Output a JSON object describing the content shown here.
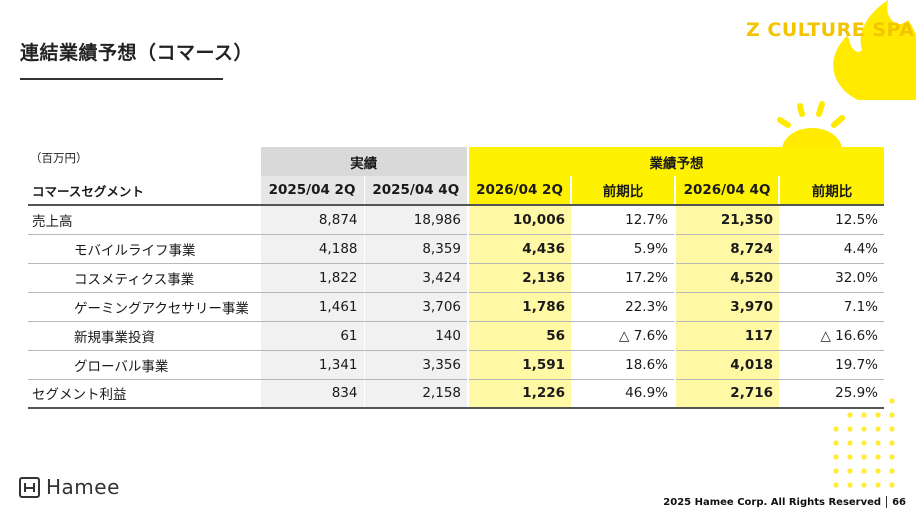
{
  "title": "連結業績予想（コマース）",
  "brand": "Z CULTURE SPA",
  "unit": "（百万円）",
  "table": {
    "group_actual": "実績",
    "group_plan": "業績予想",
    "label_header": "コマースセグメント",
    "columns": [
      "2025/04 2Q",
      "2025/04 4Q",
      "2026/04 2Q",
      "前期比",
      "2026/04 4Q",
      "前期比"
    ],
    "rows": [
      {
        "label": "売上高",
        "sub": false,
        "values": [
          "8,874",
          "18,986",
          "10,006",
          "12.7%",
          "21,350",
          "12.5%"
        ]
      },
      {
        "label": "モバイルライフ事業",
        "sub": true,
        "values": [
          "4,188",
          "8,359",
          "4,436",
          "5.9%",
          "8,724",
          "4.4%"
        ]
      },
      {
        "label": "コスメティクス事業",
        "sub": true,
        "values": [
          "1,822",
          "3,424",
          "2,136",
          "17.2%",
          "4,520",
          "32.0%"
        ]
      },
      {
        "label": "ゲーミングアクセサリー事業",
        "sub": true,
        "values": [
          "1,461",
          "3,706",
          "1,786",
          "22.3%",
          "3,970",
          "7.1%"
        ]
      },
      {
        "label": "新規事業投資",
        "sub": true,
        "values": [
          "61",
          "140",
          "56",
          "△ 7.6%",
          "117",
          "△ 16.6%"
        ]
      },
      {
        "label": "グローバル事業",
        "sub": true,
        "values": [
          "1,341",
          "3,356",
          "1,591",
          "18.6%",
          "4,018",
          "19.7%"
        ]
      },
      {
        "label": "セグメント利益",
        "sub": false,
        "values": [
          "834",
          "2,158",
          "1,226",
          "46.9%",
          "2,716",
          "25.9%"
        ]
      }
    ]
  },
  "logo_text": "Hamee",
  "footer": {
    "copyright": "2025 Hamee Corp. All Rights Reserved",
    "page": "66"
  },
  "colors": {
    "accent_yellow": "#fff200",
    "light_yellow": "#fff9a6",
    "brand_yellow": "#f4c400",
    "actual_gray": "#d9d9d9"
  }
}
